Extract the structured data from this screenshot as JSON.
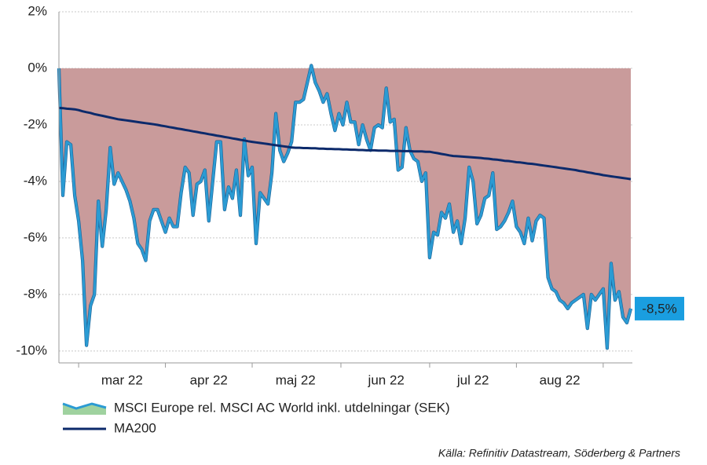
{
  "chart_data": {
    "type": "line",
    "categories": [
      null,
      null,
      null,
      null,
      null,
      null,
      null,
      null,
      null,
      null,
      null,
      null,
      null,
      null,
      null,
      null,
      "mar 22",
      null,
      null,
      null,
      null,
      null,
      null,
      null,
      null,
      null,
      null,
      null,
      null,
      null,
      null,
      null,
      null,
      null,
      null,
      null,
      null,
      null,
      "apr 22",
      null,
      null,
      null,
      null,
      null,
      null,
      null,
      null,
      null,
      null,
      null,
      null,
      null,
      null,
      null,
      null,
      null,
      null,
      null,
      null,
      null,
      "maj 22",
      null,
      null,
      null,
      null,
      null,
      null,
      null,
      null,
      null,
      null,
      null,
      null,
      null,
      null,
      null,
      null,
      null,
      null,
      null,
      null,
      null,
      null,
      "jun 22",
      null,
      null,
      null,
      null,
      null,
      null,
      null,
      null,
      null,
      null,
      null,
      null,
      null,
      null,
      null,
      null,
      null,
      null,
      null,
      null,
      null,
      "jul 22",
      null,
      null,
      null,
      null,
      null,
      null,
      null,
      null,
      null,
      null,
      null,
      null,
      null,
      null,
      null,
      null,
      null,
      null,
      null,
      null,
      null,
      "aug 22",
      null,
      null,
      null,
      null,
      null,
      null,
      null,
      null,
      null,
      null,
      null,
      null,
      null,
      null,
      null,
      null,
      null,
      null
    ],
    "series": [
      {
        "name": "MSCI Europe rel. MSCI AC World inkl. utdelningar (SEK)",
        "color": "#2b9bd3",
        "fill_below": "#c99b9b",
        "fill_above": "#9fd29f",
        "last_label": "-8,5%",
        "values": [
          0,
          -4.5,
          -2.6,
          -2.7,
          -4.5,
          -5.4,
          -6.8,
          -9.8,
          -8.4,
          -8.0,
          -4.7,
          -6.3,
          -5.0,
          -2.8,
          -4.1,
          -3.7,
          -4.0,
          -4.3,
          -4.7,
          -5.3,
          -6.2,
          -6.4,
          -6.8,
          -5.4,
          -5.0,
          -5.0,
          -5.4,
          -5.8,
          -5.3,
          -5.6,
          -5.6,
          -4.4,
          -3.5,
          -3.7,
          -5.2,
          -4.1,
          -4.0,
          -3.6,
          -5.4,
          -4.0,
          -2.6,
          -2.6,
          -5.0,
          -4.2,
          -4.6,
          -3.6,
          -5.2,
          -2.5,
          -3.8,
          -3.5,
          -6.2,
          -4.4,
          -4.6,
          -4.8,
          -3.7,
          -1.6,
          -2.9,
          -3.3,
          -3.0,
          -2.6,
          -1.2,
          -1.2,
          -1.1,
          -0.5,
          0.1,
          -0.5,
          -0.8,
          -1.2,
          -0.9,
          -1.6,
          -2.2,
          -1.6,
          -2.0,
          -1.2,
          -1.9,
          -1.9,
          -2.7,
          -2.0,
          -2.5,
          -2.9,
          -2.1,
          -2.0,
          -2.1,
          -0.7,
          -1.9,
          -1.8,
          -3.6,
          -3.5,
          -2.1,
          -2.9,
          -3.2,
          -3.3,
          -4.0,
          -3.7,
          -6.7,
          -5.8,
          -5.9,
          -5.1,
          -5.3,
          -4.8,
          -5.8,
          -5.4,
          -6.2,
          -5.3,
          -3.5,
          -4.0,
          -5.5,
          -5.2,
          -4.6,
          -4.5,
          -3.7,
          -5.7,
          -5.6,
          -5.4,
          -5.1,
          -4.7,
          -5.6,
          -5.8,
          -6.2,
          -5.3,
          -6.1,
          -5.4,
          -5.2,
          -5.3,
          -7.4,
          -7.8,
          -7.9,
          -8.2,
          -8.3,
          -8.5,
          -8.3,
          -8.2,
          -8.1,
          -8.0,
          -9.2,
          -8.0,
          -8.2,
          -8.0,
          -7.8,
          -9.9,
          -6.9,
          -8.2,
          -7.9,
          -8.8,
          -9.0,
          -8.5
        ]
      },
      {
        "name": "MA200",
        "color": "#0c2a6b",
        "values": [
          -1.4,
          -1.41,
          -1.43,
          -1.44,
          -1.45,
          -1.48,
          -1.52,
          -1.55,
          -1.58,
          -1.62,
          -1.65,
          -1.68,
          -1.71,
          -1.74,
          -1.77,
          -1.8,
          -1.82,
          -1.84,
          -1.86,
          -1.88,
          -1.9,
          -1.92,
          -1.94,
          -1.96,
          -1.98,
          -2.0,
          -2.03,
          -2.05,
          -2.08,
          -2.1,
          -2.13,
          -2.15,
          -2.18,
          -2.2,
          -2.23,
          -2.25,
          -2.28,
          -2.3,
          -2.33,
          -2.35,
          -2.38,
          -2.4,
          -2.43,
          -2.45,
          -2.48,
          -2.5,
          -2.53,
          -2.55,
          -2.58,
          -2.6,
          -2.62,
          -2.64,
          -2.66,
          -2.68,
          -2.7,
          -2.72,
          -2.74,
          -2.76,
          -2.78,
          -2.8,
          -2.81,
          -2.81,
          -2.82,
          -2.82,
          -2.83,
          -2.83,
          -2.84,
          -2.84,
          -2.85,
          -2.85,
          -2.86,
          -2.86,
          -2.87,
          -2.87,
          -2.88,
          -2.88,
          -2.89,
          -2.89,
          -2.9,
          -2.9,
          -2.9,
          -2.91,
          -2.91,
          -2.91,
          -2.92,
          -2.92,
          -2.92,
          -2.93,
          -2.93,
          -2.93,
          -2.94,
          -2.94,
          -2.94,
          -2.95,
          -2.95,
          -2.98,
          -3.0,
          -3.03,
          -3.05,
          -3.08,
          -3.1,
          -3.11,
          -3.12,
          -3.13,
          -3.14,
          -3.15,
          -3.16,
          -3.17,
          -3.19,
          -3.2,
          -3.22,
          -3.23,
          -3.25,
          -3.27,
          -3.28,
          -3.3,
          -3.32,
          -3.33,
          -3.35,
          -3.37,
          -3.38,
          -3.4,
          -3.42,
          -3.44,
          -3.46,
          -3.48,
          -3.5,
          -3.52,
          -3.54,
          -3.56,
          -3.58,
          -3.6,
          -3.63,
          -3.65,
          -3.68,
          -3.7,
          -3.73,
          -3.75,
          -3.78,
          -3.8,
          -3.82,
          -3.84,
          -3.86,
          -3.88,
          -3.9,
          -3.92
        ]
      }
    ],
    "ylim": [
      -10.42,
      2
    ],
    "yticks": [
      {
        "value": 2,
        "label": "2%"
      },
      {
        "value": 0,
        "label": "0%"
      },
      {
        "value": -2,
        "label": "-2%"
      },
      {
        "value": -4,
        "label": "-4%"
      },
      {
        "value": -6,
        "label": "-6%"
      },
      {
        "value": -8,
        "label": "-8%"
      },
      {
        "value": -10,
        "label": "-10%"
      }
    ],
    "grid": true,
    "source": "Källa: Refinitiv Datastream, Söderberg & Partners"
  }
}
